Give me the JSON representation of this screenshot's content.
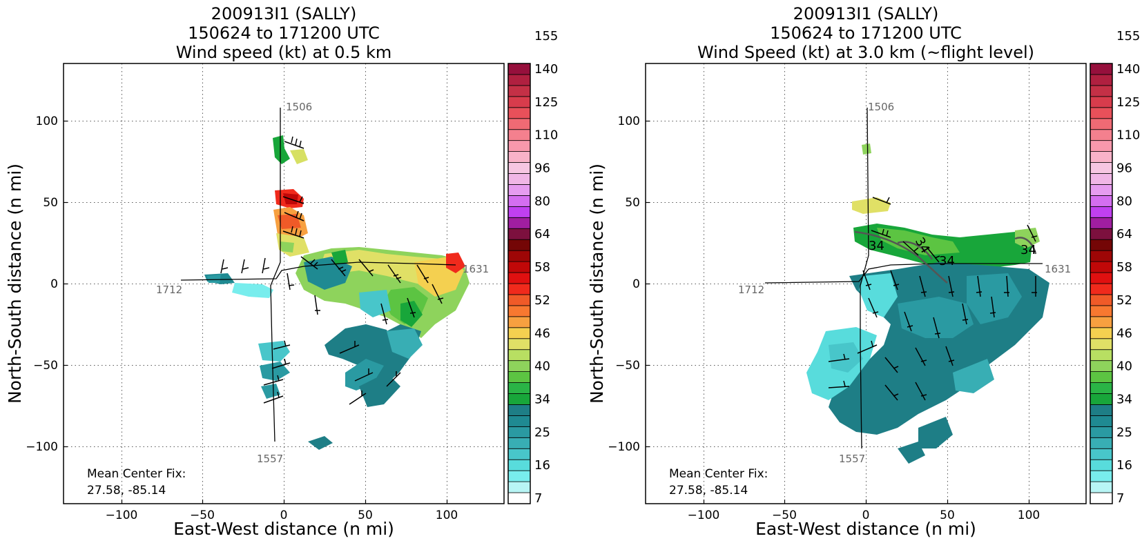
{
  "panels": [
    {
      "title_lines": [
        "200913I1 (SALLY)",
        "150624 to 171200 UTC",
        "Wind speed (kt) at 0.5 km"
      ],
      "xlabel": "East-West distance (n mi)",
      "ylabel": "North-South distance (n mi)",
      "fix_label": "Mean Center Fix:",
      "fix_value": "27.58, -85.14",
      "track_labels": [
        "1506",
        "1557",
        "1712",
        "1631"
      ]
    },
    {
      "title_lines": [
        "200913I1 (SALLY)",
        "150624 to 171200 UTC",
        "Wind Speed (kt) at 3.0 km (~flight level)"
      ],
      "xlabel": "East-West distance (n mi)",
      "ylabel": "North-South distance (n mi)",
      "fix_label": "Mean Center Fix:",
      "fix_value": "27.58, -85.14",
      "track_labels": [
        "1506",
        "1557",
        "1712",
        "1631"
      ]
    }
  ],
  "chart_data": [
    {
      "type": "heatmap",
      "title": "200913I1 (SALLY) 150624 to 171200 UTC Wind speed (kt) at 0.5 km",
      "xlabel": "East-West distance (n mi)",
      "ylabel": "North-South distance (n mi)",
      "xlim": [
        -135,
        135
      ],
      "ylim": [
        -135,
        135
      ],
      "xticks": [
        -100,
        -50,
        0,
        50,
        100
      ],
      "yticks": [
        -100,
        -50,
        0,
        50,
        100
      ],
      "xtick_labels": [
        "−100",
        "−50",
        "0",
        "50",
        "100"
      ],
      "ytick_labels": [
        "−100",
        "−50",
        "0",
        "50",
        "100"
      ],
      "grid": true,
      "colorbar_ticks": [
        7,
        16,
        25,
        34,
        40,
        46,
        52,
        58,
        64,
        80,
        96,
        110,
        125,
        140,
        155
      ],
      "track": [
        {
          "label": "1506",
          "x": 2,
          "y": 104
        },
        {
          "label": "1557",
          "x": -1,
          "y": -106
        },
        {
          "label": "1712",
          "x": -62,
          "y": -1
        },
        {
          "label": "1631",
          "x": 110,
          "y": 7
        }
      ],
      "annotations": [
        "Mean Center Fix:",
        "27.58, -85.14"
      ]
    },
    {
      "type": "heatmap",
      "title": "200913I1 (SALLY) 150624 to 171200 UTC Wind Speed (kt) at 3.0 km (~flight level)",
      "xlabel": "East-West distance (n mi)",
      "ylabel": "North-South distance (n mi)",
      "xlim": [
        -135,
        135
      ],
      "ylim": [
        -135,
        135
      ],
      "xticks": [
        -100,
        -50,
        0,
        50,
        100
      ],
      "yticks": [
        -100,
        -50,
        0,
        50,
        100
      ],
      "xtick_labels": [
        "−100",
        "−50",
        "0",
        "50",
        "100"
      ],
      "ytick_labels": [
        "−100",
        "−50",
        "0",
        "50",
        "100"
      ],
      "grid": true,
      "colorbar_ticks": [
        7,
        16,
        25,
        34,
        40,
        46,
        52,
        58,
        64,
        80,
        96,
        110,
        125,
        140,
        155
      ],
      "contour_labels": [
        "34",
        "34",
        "34",
        "34"
      ],
      "track": [
        {
          "label": "1506",
          "x": 2,
          "y": 104
        },
        {
          "label": "1557",
          "x": -1,
          "y": -106
        },
        {
          "label": "1712",
          "x": -62,
          "y": -1
        },
        {
          "label": "1631",
          "x": 110,
          "y": 7
        }
      ],
      "annotations": [
        "Mean Center Fix:",
        "27.58, -85.14"
      ]
    }
  ],
  "colorbar": {
    "colors": [
      "#ffffff",
      "#b8f5f5",
      "#78eded",
      "#58dcdc",
      "#48c6ca",
      "#38aeb4",
      "#2a9aa2",
      "#1f8a92",
      "#1e7e86",
      "#18a63a",
      "#2ab446",
      "#5cc442",
      "#8ed35c",
      "#b8df62",
      "#e0e066",
      "#f4d050",
      "#f7a040",
      "#f87830",
      "#f05a28",
      "#f02a1c",
      "#e01010",
      "#c00808",
      "#9e0606",
      "#740606",
      "#7c103e",
      "#a01ea0",
      "#c040f0",
      "#d46ef0",
      "#e69cf0",
      "#f0b6e6",
      "#f6c6e2",
      "#f8b2c8",
      "#f898ac",
      "#f4808e",
      "#f06a74",
      "#e8505a",
      "#d83c4c",
      "#c43046",
      "#b02040",
      "#96103c"
    ],
    "tick_values": [
      7,
      16,
      25,
      34,
      40,
      46,
      52,
      58,
      64,
      80,
      96,
      110,
      125,
      140,
      155
    ],
    "tick_labels": [
      "7",
      "16",
      "25",
      "34",
      "40",
      "46",
      "52",
      "58",
      "64",
      "80",
      "96",
      "110",
      "125",
      "140",
      "155"
    ],
    "tick_bins": [
      0,
      3,
      6,
      9,
      12,
      15,
      18,
      21,
      24,
      27,
      30,
      33,
      36,
      39,
      42
    ]
  }
}
